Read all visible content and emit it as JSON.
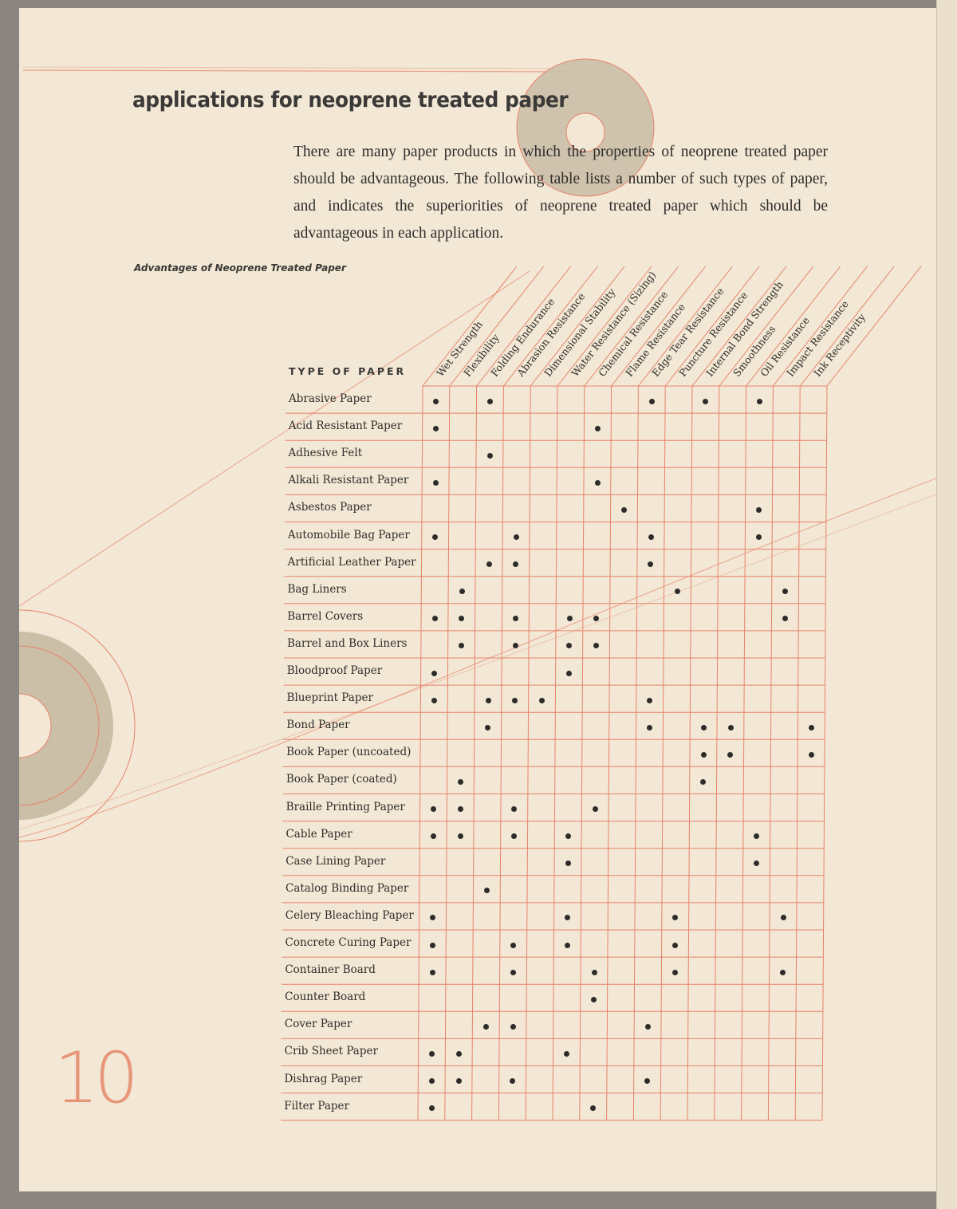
{
  "title": "applications for neoprene treated paper",
  "intro": "There are many paper products in which the properties of neoprene treated paper should be advantageous. The following table lists a number of such types of paper, and indicates the superiorities of neoprene treated paper which should be advantageous in each application.",
  "caption": "Advantages of Neoprene Treated Paper",
  "table": {
    "row_header": "TYPE OF PAPER",
    "columns": [
      "Wet Strength",
      "Flexibility",
      "Folding Endurance",
      "Abrasion Resistance",
      "Dimensional Stability",
      "Water Resistance (Sizing)",
      "Chemical Resistance",
      "Flame Resistance",
      "Edge Tear Resistance",
      "Puncture Resistance",
      "Internal Bond Strength",
      "Smoothness",
      "Oil Resistance",
      "Impact Resistance",
      "Ink Receptivity"
    ],
    "rows": [
      {
        "name": "Abrasive Paper",
        "marks": [
          1,
          3,
          9,
          11,
          13
        ]
      },
      {
        "name": "Acid Resistant Paper",
        "marks": [
          1,
          7
        ]
      },
      {
        "name": "Adhesive Felt",
        "marks": [
          3
        ]
      },
      {
        "name": "Alkali Resistant Paper",
        "marks": [
          1,
          7
        ]
      },
      {
        "name": "Asbestos Paper",
        "marks": [
          8,
          13
        ]
      },
      {
        "name": "Automobile Bag Paper",
        "marks": [
          1,
          4,
          9,
          13
        ]
      },
      {
        "name": "Artificial Leather Paper",
        "marks": [
          3,
          4,
          9
        ]
      },
      {
        "name": "Bag Liners",
        "marks": [
          2,
          10,
          14
        ]
      },
      {
        "name": "Barrel Covers",
        "marks": [
          1,
          2,
          4,
          6,
          7,
          14
        ]
      },
      {
        "name": "Barrel and Box Liners",
        "marks": [
          2,
          4,
          6,
          7
        ]
      },
      {
        "name": "Bloodproof Paper",
        "marks": [
          1,
          6
        ]
      },
      {
        "name": "Blueprint Paper",
        "marks": [
          1,
          3,
          4,
          5,
          9
        ]
      },
      {
        "name": "Bond Paper",
        "marks": [
          3,
          9,
          11,
          12,
          15
        ]
      },
      {
        "name": "Book Paper (uncoated)",
        "marks": [
          11,
          12,
          15
        ]
      },
      {
        "name": "Book Paper (coated)",
        "marks": [
          2,
          11
        ]
      },
      {
        "name": "Braille Printing Paper",
        "marks": [
          1,
          2,
          4,
          7
        ]
      },
      {
        "name": "Cable Paper",
        "marks": [
          1,
          2,
          4,
          6,
          13
        ]
      },
      {
        "name": "Case Lining Paper",
        "marks": [
          6,
          13
        ]
      },
      {
        "name": "Catalog Binding Paper",
        "marks": [
          3
        ]
      },
      {
        "name": "Celery Bleaching Paper",
        "marks": [
          1,
          6,
          10,
          14
        ]
      },
      {
        "name": "Concrete Curing Paper",
        "marks": [
          1,
          4,
          6,
          10
        ]
      },
      {
        "name": "Container Board",
        "marks": [
          1,
          4,
          7,
          10,
          14
        ]
      },
      {
        "name": "Counter Board",
        "marks": [
          7
        ]
      },
      {
        "name": "Cover Paper",
        "marks": [
          3,
          4,
          9
        ]
      },
      {
        "name": "Crib Sheet Paper",
        "marks": [
          1,
          2,
          6
        ]
      },
      {
        "name": "Dishrag Paper",
        "marks": [
          1,
          2,
          4,
          9
        ]
      },
      {
        "name": "Filter Paper",
        "marks": [
          1,
          7
        ]
      }
    ]
  },
  "page_number": "10",
  "colors": {
    "paper": "#f2e8d5",
    "grid": "#e8826a",
    "ink": "#2e2c2a",
    "disc": "#cbbfa8"
  }
}
